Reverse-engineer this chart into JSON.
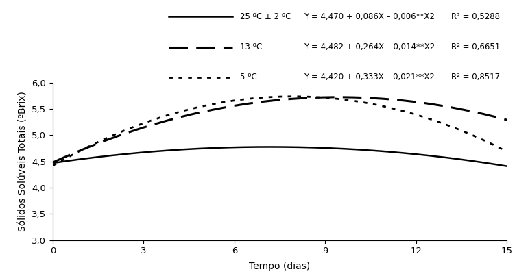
{
  "xlabel": "Tempo (dias)",
  "ylabel": "Sólidos Solúveis Totais (ºBrix)",
  "xlim": [
    0,
    15
  ],
  "ylim": [
    3.0,
    6.0
  ],
  "xticks": [
    0,
    3,
    6,
    9,
    12,
    15
  ],
  "yticks": [
    3.0,
    3.5,
    4.0,
    4.5,
    5.0,
    5.5,
    6.0
  ],
  "series": [
    {
      "label": "25 ºC ± 2 ºC",
      "equation_label": "Y = 4,470 + 0,086X – 0,006**X2",
      "r2_label": "R² = 0,5288",
      "a": 4.47,
      "b": 0.086,
      "c": -0.006,
      "linestyle": "solid",
      "linewidth": 1.8,
      "dashes": null
    },
    {
      "label": "13 ºC",
      "equation_label": "Y = 4,482 + 0,264X – 0,014**X2",
      "r2_label": "R² = 0,6651",
      "a": 4.482,
      "b": 0.264,
      "c": -0.014,
      "linestyle": "dashed",
      "linewidth": 2.2,
      "dashes": [
        9,
        4
      ]
    },
    {
      "label": "5 ºC",
      "equation_label": "Y = 4,420 + 0,333X – 0,021**X2",
      "r2_label": "R² = 0,8517",
      "a": 4.42,
      "b": 0.333,
      "c": -0.021,
      "linestyle": "dotted",
      "linewidth": 2.0,
      "dashes": [
        2,
        3
      ]
    }
  ],
  "color": "black",
  "background_color": "#ffffff",
  "legend_fontsize": 8.5,
  "axis_fontsize": 10,
  "tick_fontsize": 9.5
}
